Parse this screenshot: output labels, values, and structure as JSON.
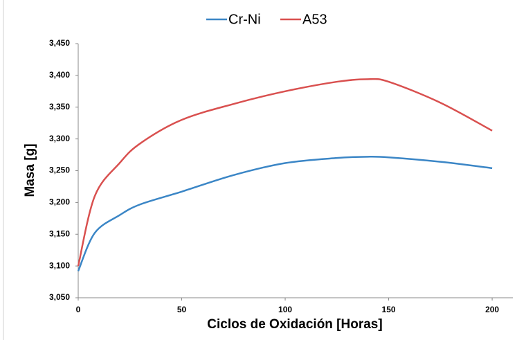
{
  "chart_data": {
    "type": "line",
    "xlabel": "Ciclos de Oxidación [Horas]",
    "ylabel": "Masa [g]",
    "x": [
      0,
      8,
      20,
      30,
      50,
      75,
      100,
      125,
      140,
      150,
      175,
      200
    ],
    "series": [
      {
        "name": "Cr-Ni",
        "color": "#3b86c6",
        "values": [
          3.092,
          3.152,
          3.18,
          3.197,
          3.217,
          3.243,
          3.262,
          3.27,
          3.272,
          3.271,
          3.264,
          3.254
        ]
      },
      {
        "name": "A53",
        "color": "#d9504f",
        "values": [
          3.1,
          3.21,
          3.262,
          3.293,
          3.33,
          3.355,
          3.375,
          3.39,
          3.394,
          3.39,
          3.357,
          3.313
        ]
      }
    ],
    "xlim": [
      0,
      210
    ],
    "xticks": [
      0,
      50,
      100,
      150,
      200
    ],
    "ylim": [
      3.05,
      3.45
    ],
    "yticks": [
      {
        "value": 3.05,
        "label": "3,050"
      },
      {
        "value": 3.1,
        "label": "3,100"
      },
      {
        "value": 3.15,
        "label": "3,150"
      },
      {
        "value": 3.2,
        "label": "3,200"
      },
      {
        "value": 3.25,
        "label": "3,250"
      },
      {
        "value": 3.3,
        "label": "3,300"
      },
      {
        "value": 3.35,
        "label": "3,350"
      },
      {
        "value": 3.4,
        "label": "3,400"
      },
      {
        "value": 3.45,
        "label": "3,450"
      }
    ],
    "grid": false,
    "legend": "top"
  }
}
